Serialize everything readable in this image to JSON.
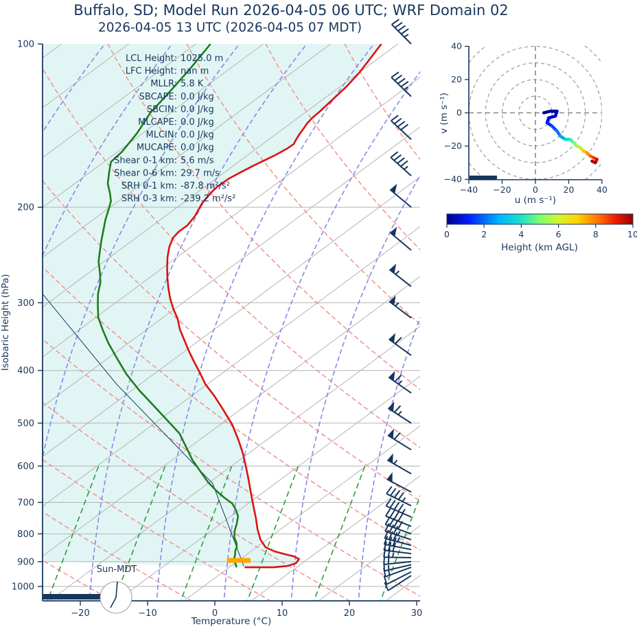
{
  "title": "Buffalo, SD; Model Run 2026-04-05 06 UTC; WRF Domain 02",
  "subtitle": "2026-04-05 13 UTC  (2026-04-05 07 MDT)",
  "colors": {
    "text_navy": "#17365c",
    "temperature": "#dd1111",
    "dewpoint": "#1e7d1e",
    "fill_cyan": "#e1f6f4",
    "isotherm_gray": "#b3b3b3",
    "dry_adiabat_red": "#f29090",
    "moist_adiabat_blue": "#8888e8",
    "mixing_line_green": "#2a9d3f",
    "barb_navy": "#17365c",
    "marker_orange": "#ffa500"
  },
  "skewt": {
    "xlabel": "Temperature (°C)",
    "ylabel": "Isobaric Height (hPa)",
    "x_ticks": [
      -20,
      -10,
      0,
      10,
      20,
      30
    ],
    "y_ticks": [
      100,
      200,
      300,
      400,
      500,
      600,
      700,
      800,
      900,
      1000
    ],
    "sun_label": "Sun-MDT",
    "stats": [
      {
        "label": "LCL Height:",
        "value": "1025.0 m"
      },
      {
        "label": "LFC Height:",
        "value": "nan m"
      },
      {
        "label": "MLLR:",
        "value": "5.8 K"
      },
      {
        "label": "SBCAPE:",
        "value": "0.0 J/kg"
      },
      {
        "label": "SBCIN:",
        "value": "0.0 J/kg"
      },
      {
        "label": "MLCAPE:",
        "value": "0.0 J/kg"
      },
      {
        "label": "MLCIN:",
        "value": "0.0 J/kg"
      },
      {
        "label": "MUCAPE:",
        "value": "0.0 J/kg"
      },
      {
        "label": "Shear 0-1 km:",
        "value": "5.6 m/s"
      },
      {
        "label": "Shear 0-6 km:",
        "value": "29.7 m/s"
      },
      {
        "label": "SRH 0-1 km:",
        "value": "-87.8 m²/s²"
      },
      {
        "label": "SRH 0-3 km:",
        "value": "-239.2 m²/s²"
      }
    ]
  },
  "chart_data": {
    "type": "line",
    "title": "Skew-T log-P sounding",
    "xlabel": "Temperature (°C)",
    "ylabel": "Isobaric Height (hPa)",
    "xlim": [
      -25.6,
      30.5
    ],
    "ylim_hpa": [
      1050,
      100
    ],
    "grid": "skewed isotherms, dry/moist adiabats, mixing-ratio lines",
    "series": [
      {
        "name": "temperature",
        "color": "#dd1111",
        "x_units": "degC",
        "y_units": "hPa",
        "points": [
          [
            100,
            -87.1
          ],
          [
            106,
            -85.9
          ],
          [
            113,
            -84.6
          ],
          [
            120,
            -83.7
          ],
          [
            125,
            -83.3
          ],
          [
            129,
            -83.0
          ],
          [
            133,
            -82.7
          ],
          [
            137,
            -82.5
          ],
          [
            140,
            -82.2
          ],
          [
            143,
            -81.7
          ],
          [
            147,
            -81.1
          ],
          [
            151,
            -80.4
          ],
          [
            153,
            -80.0
          ],
          [
            156,
            -80.1
          ],
          [
            160,
            -80.5
          ],
          [
            164,
            -81.1
          ],
          [
            168,
            -81.7
          ],
          [
            173,
            -82.3
          ],
          [
            177,
            -82.7
          ],
          [
            183,
            -82.8
          ],
          [
            187,
            -82.6
          ],
          [
            192,
            -82.2
          ],
          [
            197,
            -81.7
          ],
          [
            202,
            -81.0
          ],
          [
            208,
            -80.2
          ],
          [
            216,
            -79.5
          ],
          [
            222,
            -79.5
          ],
          [
            228,
            -79.1
          ],
          [
            237,
            -77.8
          ],
          [
            247,
            -76.1
          ],
          [
            258,
            -74.1
          ],
          [
            270,
            -71.9
          ],
          [
            282,
            -69.7
          ],
          [
            295,
            -67.3
          ],
          [
            308,
            -64.8
          ],
          [
            321,
            -62.2
          ],
          [
            336,
            -59.7
          ],
          [
            351,
            -57.0
          ],
          [
            369,
            -53.9
          ],
          [
            386,
            -51.0
          ],
          [
            404,
            -48.0
          ],
          [
            424,
            -44.9
          ],
          [
            445,
            -41.3
          ],
          [
            472,
            -37.2
          ],
          [
            504,
            -32.7
          ],
          [
            538,
            -28.7
          ],
          [
            570,
            -25.3
          ],
          [
            604,
            -22.1
          ],
          [
            637,
            -19.2
          ],
          [
            675,
            -16.1
          ],
          [
            711,
            -13.3
          ],
          [
            747,
            -10.6
          ],
          [
            785,
            -8.0
          ],
          [
            820,
            -5.5
          ],
          [
            847,
            -3.2
          ],
          [
            862,
            -1.0
          ],
          [
            872,
            1.0
          ],
          [
            880,
            2.8
          ],
          [
            890,
            4.1
          ],
          [
            906,
            4.5
          ],
          [
            917,
            3.8
          ],
          [
            922,
            2.0
          ],
          [
            922,
            -2.3
          ]
        ]
      },
      {
        "name": "dewpoint",
        "color": "#1e7d1e",
        "x_units": "degC",
        "y_units": "hPa",
        "points": [
          [
            100,
            -112.5
          ],
          [
            112,
            -110.4
          ],
          [
            123,
            -108.9
          ],
          [
            134,
            -107.6
          ],
          [
            146,
            -105.5
          ],
          [
            158,
            -104.0
          ],
          [
            165,
            -103.6
          ],
          [
            172,
            -101.9
          ],
          [
            181,
            -99.7
          ],
          [
            189,
            -97.3
          ],
          [
            195,
            -95.7
          ],
          [
            203,
            -94.2
          ],
          [
            211,
            -92.8
          ],
          [
            220,
            -91.1
          ],
          [
            230,
            -89.3
          ],
          [
            240,
            -87.5
          ],
          [
            252,
            -85.4
          ],
          [
            264,
            -83.0
          ],
          [
            275,
            -81.0
          ],
          [
            289,
            -79.0
          ],
          [
            303,
            -76.8
          ],
          [
            319,
            -74.3
          ],
          [
            336,
            -71.2
          ],
          [
            356,
            -67.6
          ],
          [
            379,
            -63.4
          ],
          [
            406,
            -58.7
          ],
          [
            434,
            -53.7
          ],
          [
            462,
            -48.7
          ],
          [
            493,
            -43.5
          ],
          [
            523,
            -38.8
          ],
          [
            584,
            -31.7
          ],
          [
            615,
            -28.0
          ],
          [
            642,
            -24.9
          ],
          [
            667,
            -21.8
          ],
          [
            687,
            -19.2
          ],
          [
            703,
            -17.0
          ],
          [
            722,
            -15.2
          ],
          [
            743,
            -13.5
          ],
          [
            767,
            -12.2
          ],
          [
            790,
            -11.1
          ],
          [
            813,
            -9.8
          ],
          [
            830,
            -8.5
          ],
          [
            845,
            -7.6
          ],
          [
            860,
            -7.0
          ],
          [
            877,
            -6.1
          ],
          [
            890,
            -5.6
          ],
          [
            908,
            -4.4
          ],
          [
            922,
            -3.5
          ]
        ]
      },
      {
        "name": "parcel-trace",
        "color": "#17365c",
        "x_units": "degC",
        "y_units": "hPa",
        "points": [
          [
            288,
            -87.5
          ],
          [
            424,
            -58.1
          ],
          [
            646,
            -23.9
          ],
          [
            917,
            -2.7
          ]
        ]
      }
    ],
    "surface_marker": {
      "name": "surface-level-marker",
      "color": "#ffa500",
      "pressure_hpa": 890,
      "t_from": -6.6,
      "t_to": -3.1
    },
    "wind_barbs": [
      {
        "p": 100,
        "dir": 315,
        "kt": 45
      },
      {
        "p": 125,
        "dir": 314,
        "kt": 45
      },
      {
        "p": 150,
        "dir": 313,
        "kt": 40
      },
      {
        "p": 175,
        "dir": 312,
        "kt": 45
      },
      {
        "p": 200,
        "dir": 310,
        "kt": 50
      },
      {
        "p": 240,
        "dir": 310,
        "kt": 50
      },
      {
        "p": 280,
        "dir": 308,
        "kt": 55
      },
      {
        "p": 320,
        "dir": 307,
        "kt": 55
      },
      {
        "p": 375,
        "dir": 306,
        "kt": 60
      },
      {
        "p": 440,
        "dir": 305,
        "kt": 65
      },
      {
        "p": 500,
        "dir": 303,
        "kt": 65
      },
      {
        "p": 560,
        "dir": 302,
        "kt": 60
      },
      {
        "p": 620,
        "dir": 300,
        "kt": 55
      },
      {
        "p": 670,
        "dir": 298,
        "kt": 50
      },
      {
        "p": 710,
        "dir": 296,
        "kt": 45
      },
      {
        "p": 745,
        "dir": 294,
        "kt": 45
      },
      {
        "p": 775,
        "dir": 292,
        "kt": 40
      },
      {
        "p": 800,
        "dir": 290,
        "kt": 40
      },
      {
        "p": 820,
        "dir": 288,
        "kt": 35
      },
      {
        "p": 840,
        "dir": 285,
        "kt": 35
      },
      {
        "p": 855,
        "dir": 281,
        "kt": 30
      },
      {
        "p": 870,
        "dir": 277,
        "kt": 30
      },
      {
        "p": 885,
        "dir": 271,
        "kt": 25
      },
      {
        "p": 900,
        "dir": 264,
        "kt": 20
      },
      {
        "p": 912,
        "dir": 257,
        "kt": 15
      },
      {
        "p": 922,
        "dir": 250,
        "kt": 15
      },
      {
        "p": 940,
        "dir": 243,
        "kt": 10
      },
      {
        "p": 955,
        "dir": 237,
        "kt": 10
      }
    ],
    "hodograph": {
      "xlabel": "u (m s⁻¹)",
      "ylabel": "v (m s⁻¹)",
      "xlim": [
        -40,
        40
      ],
      "ylim": [
        -40,
        40
      ],
      "ticks": [
        -40,
        -20,
        0,
        20,
        40
      ],
      "ring_interval": 10,
      "trace": [
        {
          "u": 5,
          "v": 0,
          "c": "#00008b"
        },
        {
          "u": 9,
          "v": 1,
          "c": "#000099"
        },
        {
          "u": 13,
          "v": 1,
          "c": "#0000b8"
        },
        {
          "u": 12,
          "v": -2,
          "c": "#0000d8"
        },
        {
          "u": 8,
          "v": -3,
          "c": "#0000f0"
        },
        {
          "u": 7,
          "v": -6,
          "c": "#0020ff"
        },
        {
          "u": 10,
          "v": -8,
          "c": "#0048ff"
        },
        {
          "u": 13,
          "v": -11,
          "c": "#0078ff"
        },
        {
          "u": 15,
          "v": -14,
          "c": "#00a8e8"
        },
        {
          "u": 18,
          "v": -16,
          "c": "#00d8d0"
        },
        {
          "u": 21,
          "v": -16,
          "c": "#3cf0b0"
        },
        {
          "u": 23,
          "v": -18,
          "c": "#7dff6e"
        },
        {
          "u": 25,
          "v": -20,
          "c": "#b4f046"
        },
        {
          "u": 27,
          "v": -21,
          "c": "#e0e020"
        },
        {
          "u": 29,
          "v": -23,
          "c": "#ffc000"
        },
        {
          "u": 31,
          "v": -24,
          "c": "#ff9000"
        },
        {
          "u": 33,
          "v": -26,
          "c": "#ff5a00"
        },
        {
          "u": 35,
          "v": -27,
          "c": "#f03000"
        },
        {
          "u": 37,
          "v": -28,
          "c": "#d01010"
        },
        {
          "u": 36,
          "v": -30,
          "c": "#a80000"
        },
        {
          "u": 34,
          "v": -29,
          "c": "#8b0000"
        }
      ],
      "colorbar": {
        "label": "Height (km AGL)",
        "ticks": [
          0,
          2,
          4,
          6,
          8,
          10
        ],
        "stops": [
          {
            "o": 0,
            "c": "#00008b"
          },
          {
            "o": 0.12,
            "c": "#0020ff"
          },
          {
            "o": 0.28,
            "c": "#00b4ff"
          },
          {
            "o": 0.4,
            "c": "#1fe0c8"
          },
          {
            "o": 0.5,
            "c": "#7dff6e"
          },
          {
            "o": 0.6,
            "c": "#d4f32f"
          },
          {
            "o": 0.7,
            "c": "#ffd400"
          },
          {
            "o": 0.8,
            "c": "#ff8000"
          },
          {
            "o": 0.9,
            "c": "#f02000"
          },
          {
            "o": 1,
            "c": "#990000"
          }
        ]
      }
    }
  }
}
